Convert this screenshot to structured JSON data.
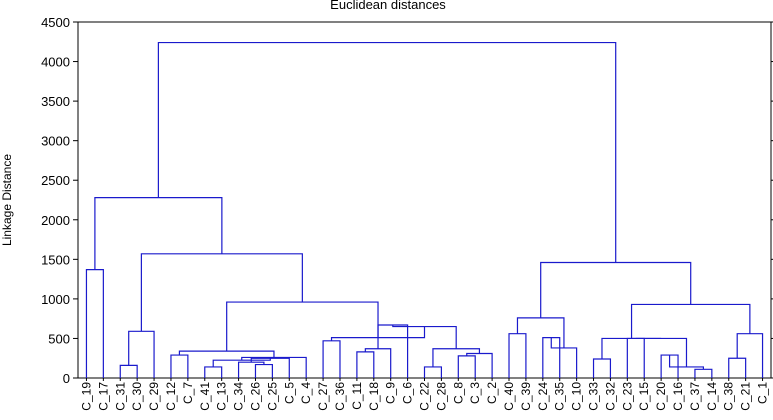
{
  "chart_data": {
    "type": "dendrogram",
    "title": "Euclidean distances",
    "xlabel": "",
    "ylabel": "Linkage Distance",
    "ylim": [
      0,
      4500
    ],
    "yticks": [
      0,
      500,
      1000,
      1500,
      2000,
      2500,
      3000,
      3500,
      4000,
      4500
    ],
    "grid": false,
    "line_color": "#1a1acc",
    "leaves": [
      "C_19",
      "C_17",
      "C_31",
      "C_30",
      "C_29",
      "C_12",
      "C_7",
      "C_41",
      "C_13",
      "C_34",
      "C_26",
      "C_25",
      "C_5",
      "C_4",
      "C_27",
      "C_36",
      "C_11",
      "C_18",
      "C_9",
      "C_6",
      "C_22",
      "C_28",
      "C_8",
      "C_3",
      "C_2",
      "C_40",
      "C_39",
      "C_24",
      "C_35",
      "C_10",
      "C_33",
      "C_32",
      "C_23",
      "C_15",
      "C_20",
      "C_16",
      "C_37",
      "C_14",
      "C_38",
      "C_21",
      "C_1"
    ],
    "merges": [
      {
        "id": "m1",
        "left": "C_19",
        "right": "C_17",
        "height": 1370
      },
      {
        "id": "m2",
        "left": "C_31",
        "right": "C_30",
        "height": 160
      },
      {
        "id": "m3",
        "left": "m2",
        "right": "C_29",
        "height": 590
      },
      {
        "id": "m4",
        "left": "C_12",
        "right": "C_7",
        "height": 290
      },
      {
        "id": "m5",
        "left": "C_41",
        "right": "C_13",
        "height": 140
      },
      {
        "id": "m6",
        "left": "C_26",
        "right": "C_25",
        "height": 170
      },
      {
        "id": "m7",
        "left": "C_34",
        "right": "m6",
        "height": 200
      },
      {
        "id": "m8",
        "left": "m7",
        "right": "C_5",
        "height": 250
      },
      {
        "id": "m9",
        "left": "m5",
        "right": "m8",
        "height": 225
      },
      {
        "id": "m10",
        "left": "m9",
        "right": "C_4",
        "height": 260
      },
      {
        "id": "m11",
        "left": "m4",
        "right": "m10",
        "height": 340
      },
      {
        "id": "m12",
        "left": "C_27",
        "right": "C_36",
        "height": 470
      },
      {
        "id": "m13",
        "left": "C_11",
        "right": "C_18",
        "height": 330
      },
      {
        "id": "m14",
        "left": "m13",
        "right": "C_9",
        "height": 370
      },
      {
        "id": "m15",
        "left": "m14",
        "right": "C_6",
        "height": 670
      },
      {
        "id": "m16",
        "left": "C_22",
        "right": "C_28",
        "height": 140
      },
      {
        "id": "m17",
        "left": "C_8",
        "right": "C_3",
        "height": 280
      },
      {
        "id": "m18",
        "left": "m17",
        "right": "C_2",
        "height": 310
      },
      {
        "id": "m19",
        "left": "m16",
        "right": "m18",
        "height": 370
      },
      {
        "id": "m20",
        "left": "m15",
        "right": "m19",
        "height": 650
      },
      {
        "id": "m21",
        "left": "m12",
        "right": "m20",
        "height": 510
      },
      {
        "id": "m22",
        "left": "m11",
        "right": "m21",
        "height": 960
      },
      {
        "id": "m23",
        "left": "m3",
        "right": "m22",
        "height": 1570
      },
      {
        "id": "m24",
        "left": "m1",
        "right": "m23",
        "height": 2280
      },
      {
        "id": "m25",
        "left": "C_40",
        "right": "C_39",
        "height": 560
      },
      {
        "id": "m26",
        "left": "C_24",
        "right": "C_35",
        "height": 510
      },
      {
        "id": "m27",
        "left": "m26",
        "right": "C_10",
        "height": 380
      },
      {
        "id": "m28",
        "left": "m25",
        "right": "m27",
        "height": 760
      },
      {
        "id": "m29",
        "left": "C_33",
        "right": "C_32",
        "height": 240
      },
      {
        "id": "m30",
        "left": "C_23",
        "right": "C_15",
        "height": 500
      },
      {
        "id": "m31",
        "left": "C_20",
        "right": "C_16",
        "height": 290
      },
      {
        "id": "m32",
        "left": "C_37",
        "right": "C_14",
        "height": 110
      },
      {
        "id": "m33",
        "left": "m31",
        "right": "m32",
        "height": 140
      },
      {
        "id": "m34",
        "left": "m30",
        "right": "m33",
        "height": 500
      },
      {
        "id": "m35",
        "left": "m29",
        "right": "m34",
        "height": 500
      },
      {
        "id": "m36",
        "left": "C_38",
        "right": "C_21",
        "height": 250
      },
      {
        "id": "m37",
        "left": "m36",
        "right": "C_1",
        "height": 560
      },
      {
        "id": "m38",
        "left": "m35",
        "right": "m37",
        "height": 930
      },
      {
        "id": "m39",
        "left": "m28",
        "right": "m38",
        "height": 1460
      },
      {
        "id": "m40",
        "left": "m24",
        "right": "m39",
        "height": 4240
      }
    ]
  }
}
